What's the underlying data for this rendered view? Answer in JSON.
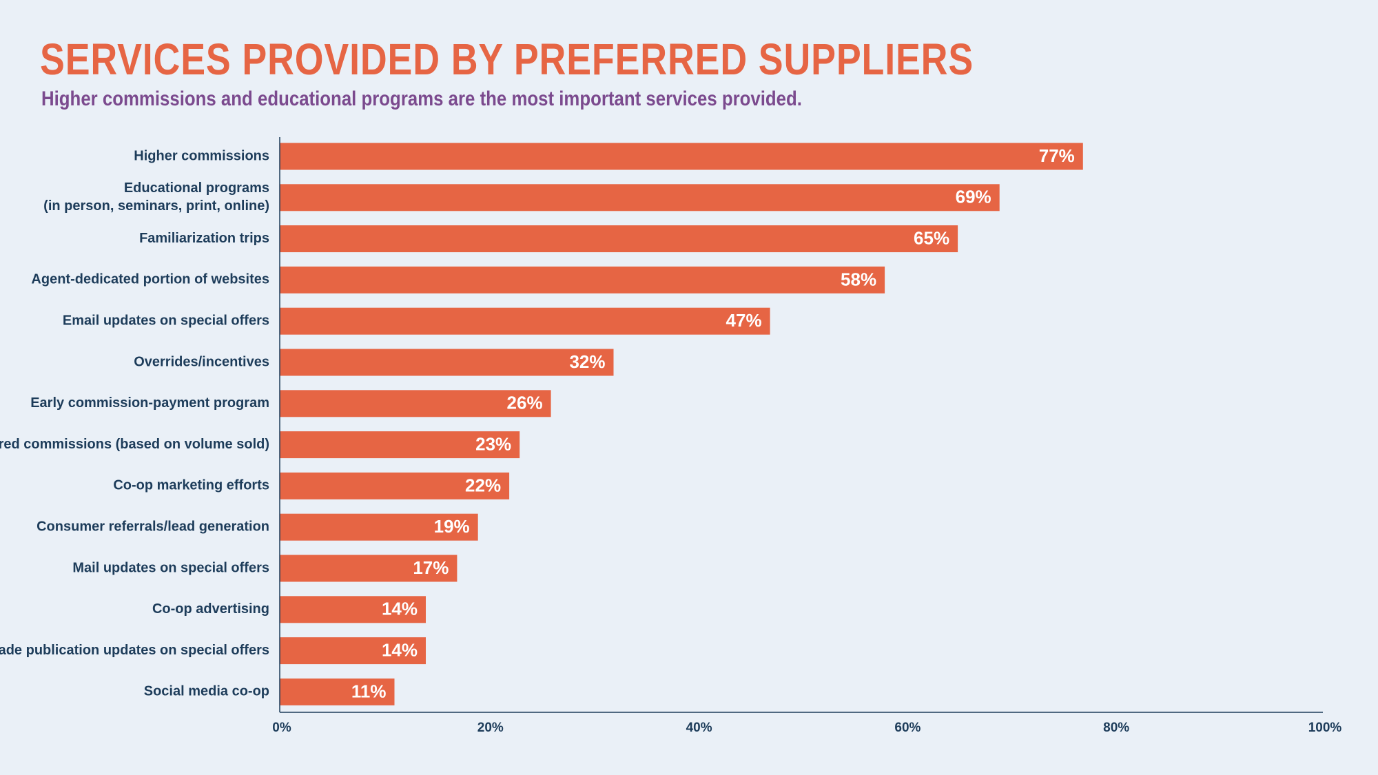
{
  "colors": {
    "background": "#eaf0f7",
    "title": "#e66544",
    "subtitle": "#7b4a8e",
    "bar": "#e66544",
    "axis": "#1d3c5a",
    "label": "#1d3c5a",
    "value_label": "#ffffff"
  },
  "chart_data": {
    "type": "bar",
    "orientation": "horizontal",
    "title": "SERVICES PROVIDED BY PREFERRED SUPPLIERS",
    "subtitle": "Higher commissions and educational programs are the most important services provided.",
    "xlabel": "",
    "ylabel": "",
    "categories": [
      [
        "Higher commissions"
      ],
      [
        "Educational programs",
        "(in person, seminars, print, online)"
      ],
      [
        "Familiarization trips"
      ],
      [
        "Agent-dedicated portion of websites"
      ],
      [
        "Email updates on special offers"
      ],
      [
        "Overrides/incentives"
      ],
      [
        "Early commission-payment program"
      ],
      [
        "Tiered commissions (based on volume sold)"
      ],
      [
        "Co-op marketing efforts"
      ],
      [
        "Consumer referrals/lead generation"
      ],
      [
        "Mail updates on special offers"
      ],
      [
        "Co-op advertising"
      ],
      [
        "Trade publication updates on special offers"
      ],
      [
        "Social media co-op"
      ]
    ],
    "values": [
      77,
      69,
      65,
      58,
      47,
      32,
      26,
      23,
      22,
      19,
      17,
      14,
      14,
      11
    ],
    "value_labels": [
      "77%",
      "69%",
      "65%",
      "58%",
      "47%",
      "32%",
      "26%",
      "23%",
      "22%",
      "19%",
      "17%",
      "14%",
      "14%",
      "11%"
    ],
    "xlim": [
      0,
      100
    ],
    "xticks": [
      0,
      20,
      40,
      60,
      80,
      100
    ],
    "xtick_labels": [
      "0%",
      "20%",
      "40%",
      "60%",
      "80%",
      "100%"
    ],
    "grid": false,
    "legend": "none"
  }
}
